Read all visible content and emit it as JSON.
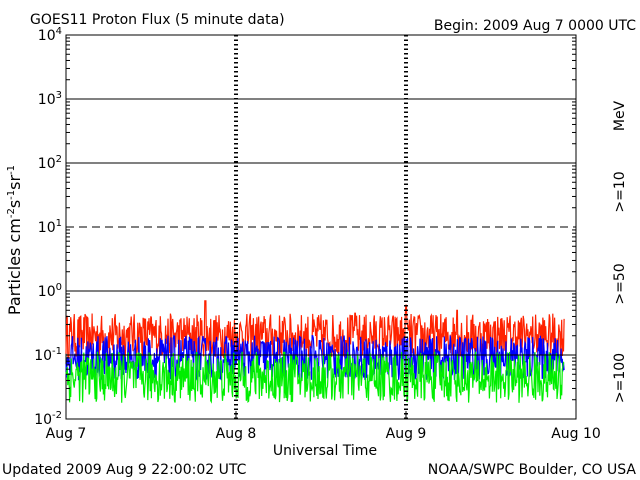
{
  "chart_data": {
    "type": "line",
    "title": "GOES11 Proton Flux (5 minute data)",
    "begin_label": "Begin: 2009 Aug 7 0000 UTC",
    "xlabel": "Universal Time",
    "ylabel_parts": {
      "base": "Particles cm",
      "exp1": "-2",
      "s": "s",
      "exp2": "-1",
      "sr": "sr",
      "exp3": "-1"
    },
    "x_ticks": [
      "Aug 7",
      "Aug 8",
      "Aug 9",
      "Aug 10"
    ],
    "xlim_days": [
      0,
      3
    ],
    "y_scale": "log",
    "ylim": [
      0.01,
      10000
    ],
    "y_tick_labels": [
      {
        "base": "10",
        "exp": "-2",
        "value": 0.01
      },
      {
        "base": "10",
        "exp": "-1",
        "value": 0.1
      },
      {
        "base": "10",
        "exp": "0",
        "value": 1
      },
      {
        "base": "10",
        "exp": "1",
        "value": 10
      },
      {
        "base": "10",
        "exp": "2",
        "value": 100
      },
      {
        "base": "10",
        "exp": "3",
        "value": 1000
      },
      {
        "base": "10",
        "exp": "4",
        "value": 10000
      }
    ],
    "reference_lines": [
      {
        "value": 10,
        "style": "dashed"
      },
      {
        "value": 1,
        "style": "solid"
      },
      {
        "value": 100,
        "style": "solid"
      },
      {
        "value": 1000,
        "style": "solid"
      },
      {
        "value": 0.1,
        "style": "solid"
      }
    ],
    "series": [
      {
        "name": ">=10",
        "color": "#ff2200",
        "baseline": 0.2,
        "spread": 0.35,
        "spike_days": [
          [
            0.82,
            0.7
          ],
          [
            1.7,
            0.45
          ],
          [
            2.0,
            0.6
          ],
          [
            2.3,
            0.5
          ]
        ]
      },
      {
        "name": ">=50",
        "color": "#0000ff",
        "baseline": 0.09,
        "spread": 0.35,
        "spike_days": [
          [
            1.45,
            0.2
          ],
          [
            2.35,
            0.18
          ]
        ]
      },
      {
        "name": ">=100",
        "color": "#00ee00",
        "baseline": 0.045,
        "spread": 0.4,
        "spike_days": []
      }
    ],
    "legend": {
      "unit": "MeV",
      "placement": "right, vertical"
    }
  },
  "footer": {
    "updated": "Updated 2009 Aug  9 22:00:02 UTC",
    "source": "NOAA/SWPC Boulder, CO USA"
  }
}
